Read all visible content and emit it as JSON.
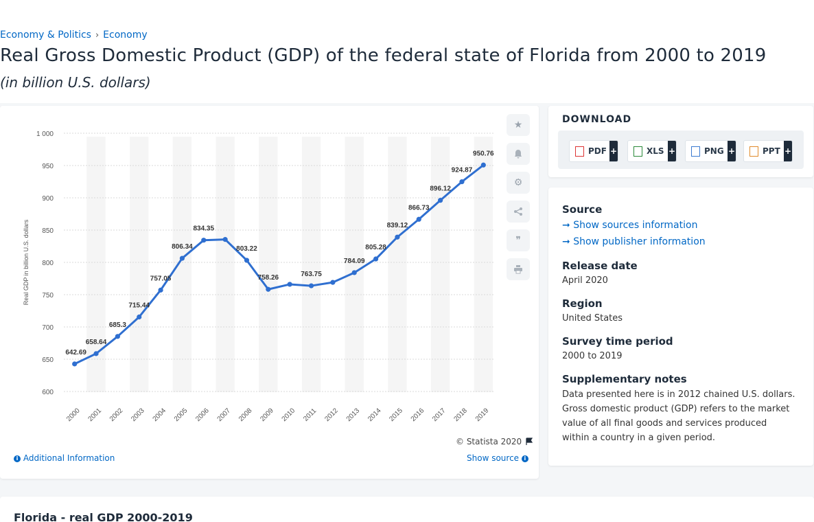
{
  "breadcrumb": {
    "item1": "Economy & Politics",
    "separator": "›",
    "item2": "Economy"
  },
  "page": {
    "title": "Real Gross Domestic Product (GDP) of the federal state of Florida from 2000 to 2019",
    "subtitle": "(in billion U.S. dollars)"
  },
  "chart_data": {
    "type": "line",
    "title": "",
    "ylabel": "Real GDP in billion U.S. dollars",
    "xlabel": "",
    "categories": [
      "2000",
      "2001",
      "2002",
      "2003",
      "2004",
      "2005",
      "2006",
      "2007",
      "2008",
      "2009",
      "2010",
      "2011",
      "2012",
      "2013",
      "2014",
      "2015",
      "2016",
      "2017",
      "2018",
      "2019"
    ],
    "values": [
      642.69,
      658.64,
      685.3,
      715.44,
      757.05,
      806.34,
      834.35,
      835.5,
      803.22,
      758.26,
      766.0,
      763.75,
      769.0,
      784.09,
      805.28,
      839.12,
      866.73,
      896.12,
      924.87,
      950.76
    ],
    "labels": [
      "642.69",
      "658.64",
      "685.3",
      "715.44",
      "757.05",
      "806.34",
      "834.35",
      "",
      "803.22",
      "758.26",
      "",
      "763.75",
      "",
      "784.09",
      "805.28",
      "839.12",
      "866.73",
      "896.12",
      "924.87",
      "950.76"
    ],
    "ylim": [
      600,
      1000
    ],
    "yticks": [
      "600",
      "650",
      "700",
      "750",
      "800",
      "850",
      "900",
      "950",
      "1 000"
    ],
    "grid": true,
    "line_color": "#2f6fd0"
  },
  "chart_footer": {
    "copyright": "© Statista 2020",
    "additional_info": "Additional Information",
    "show_source": "Show source"
  },
  "side_icons": [
    "star-icon",
    "bell-icon",
    "gear-icon",
    "share-icon",
    "quote-icon",
    "print-icon"
  ],
  "download": {
    "title": "DOWNLOAD",
    "buttons": [
      {
        "label": "PDF",
        "plus": "+"
      },
      {
        "label": "XLS",
        "plus": "+"
      },
      {
        "label": "PNG",
        "plus": "+"
      },
      {
        "label": "PPT",
        "plus": "+"
      }
    ]
  },
  "info": {
    "source_heading": "Source",
    "show_sources": "Show sources information",
    "show_publisher": "Show publisher information",
    "release_heading": "Release date",
    "release_value": "April 2020",
    "region_heading": "Region",
    "region_value": "United States",
    "period_heading": "Survey time period",
    "period_value": "2000 to 2019",
    "notes_heading": "Supplementary notes",
    "notes_value": "Data presented here is in 2012 chained U.S. dollars. Gross domestic product (GDP) refers to the market value of all final goods and services produced within a country in a given period."
  },
  "bottom": {
    "title": "Florida - real GDP 2000-2019"
  }
}
